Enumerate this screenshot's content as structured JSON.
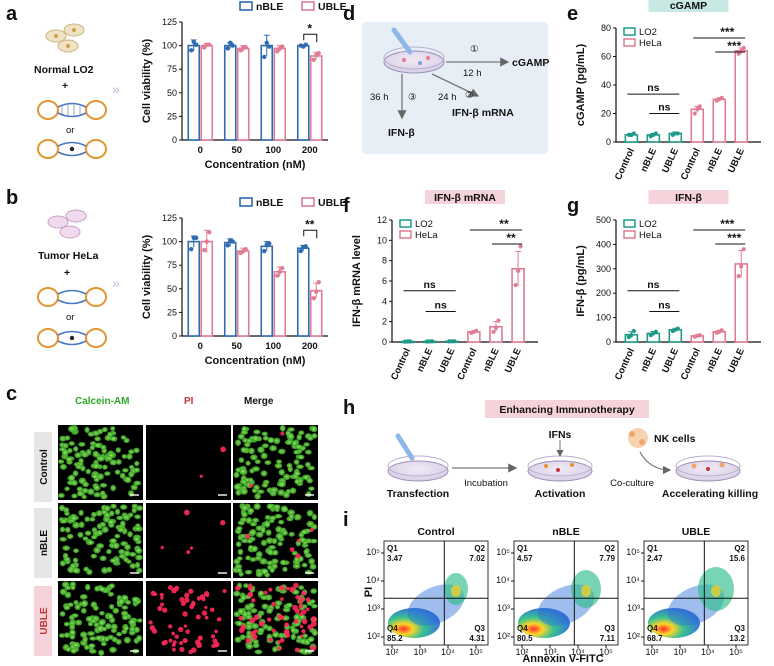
{
  "panels": {
    "a": {
      "label": "a",
      "cells_label": "Normal LO2",
      "plus": "+",
      "or": "or",
      "ylabel": "Cell viability (%)",
      "xlabel": "Concentration (nM)",
      "legend": [
        "nBLE",
        "UBLE"
      ],
      "significance": [
        {
          "text": "*"
        }
      ]
    },
    "b": {
      "label": "b",
      "cells_label": "Tumor HeLa",
      "plus": "+",
      "or": "or",
      "ylabel": "Cell viability (%)",
      "xlabel": "Concentration (nM)",
      "legend": [
        "nBLE",
        "UBLE"
      ],
      "significance": [
        {
          "text": "**"
        }
      ]
    },
    "c": {
      "label": "c",
      "columns": [
        "Calcein-AM",
        "PI",
        "Merge"
      ],
      "rows": [
        "Control",
        "nBLE",
        "UBLE"
      ]
    },
    "d": {
      "label": "d",
      "steps": [
        {
          "num": "①",
          "time": "12 h",
          "product": "cGAMP"
        },
        {
          "num": "②",
          "time": "24 h",
          "product": "IFN-β mRNA"
        },
        {
          "num": "③",
          "time": "36 h",
          "product": "IFN-β"
        }
      ]
    },
    "e": {
      "label": "e",
      "title": "cGAMP",
      "ylabel": "cGAMP (pg/mL)",
      "legend": [
        "LO2",
        "HeLa"
      ],
      "significance": [
        "ns",
        "ns",
        "***",
        "***"
      ]
    },
    "f": {
      "label": "f",
      "title": "IFN-β mRNA",
      "ylabel": "IFN-β mRNA level",
      "legend": [
        "LO2",
        "HeLa"
      ],
      "significance": [
        "ns",
        "ns",
        "**",
        "**"
      ]
    },
    "g": {
      "label": "g",
      "title": "IFN-β",
      "ylabel": "IFN-β (pg/mL)",
      "legend": [
        "LO2",
        "HeLa"
      ],
      "significance": [
        "ns",
        "ns",
        "***",
        "***"
      ]
    },
    "h": {
      "label": "h",
      "title": "Enhancing Immunotherapy",
      "steps": [
        "Transfection",
        "Incubation",
        "Activation",
        "Co-culture",
        "Accelerating killing"
      ],
      "ifns": "IFNs",
      "nk": "NK cells"
    },
    "i": {
      "label": "i",
      "xlabel": "Annexin V-FITC",
      "ylabel": "PI",
      "tick_labels": [
        "10²",
        "10³",
        "10⁴",
        "10⁵"
      ],
      "plots": [
        {
          "title": "Control",
          "q": [
            {
              "name": "Q1",
              "value": "3.47"
            },
            {
              "name": "Q2",
              "value": "7.02"
            },
            {
              "name": "Q4",
              "value": "85.2"
            },
            {
              "name": "Q3",
              "value": "4.31"
            }
          ]
        },
        {
          "title": "nBLE",
          "q": [
            {
              "name": "Q1",
              "value": "4.57"
            },
            {
              "name": "Q2",
              "value": "7.79"
            },
            {
              "name": "Q4",
              "value": "80.5"
            },
            {
              "name": "Q3",
              "value": "7.11"
            }
          ]
        },
        {
          "title": "UBLE",
          "q": [
            {
              "name": "Q1",
              "value": "2.47"
            },
            {
              "name": "Q2",
              "value": "15.6"
            },
            {
              "name": "Q4",
              "value": "68.7"
            },
            {
              "name": "Q3",
              "value": "13.2"
            }
          ]
        }
      ]
    }
  },
  "colors": {
    "nBLE": "#2e6bb0",
    "UBLE": "#e07d94",
    "LO2": "#1f9a88",
    "HeLa": "#e07d94",
    "dot": "#b83a3a",
    "title_bg": "#c8e8e4",
    "title_bg2": "#f6d3da"
  },
  "chart_data": [
    {
      "panel": "a",
      "type": "bar",
      "categories": [
        "0",
        "50",
        "100",
        "200"
      ],
      "series": [
        {
          "name": "nBLE",
          "values": [
            100,
            100,
            100,
            100
          ],
          "errors": [
            6,
            3,
            11,
            1
          ],
          "points": [
            [
              95,
              104,
              101
            ],
            [
              97,
              103,
              100
            ],
            [
              88,
              103,
              99
            ],
            [
              100,
              99,
              101
            ]
          ]
        },
        {
          "name": "UBLE",
          "values": [
            100,
            97,
            97,
            89
          ],
          "errors": [
            2,
            3,
            3,
            4
          ],
          "points": [
            [
              98,
              101,
              101
            ],
            [
              95,
              98,
              98
            ],
            [
              94,
              97,
              99
            ],
            [
              85,
              90,
              92
            ]
          ]
        }
      ],
      "xlabel": "Concentration (nM)",
      "ylabel": "Cell viability (%)",
      "ylim": [
        0,
        125
      ],
      "yticks": [
        0,
        25,
        50,
        75,
        100,
        125
      ]
    },
    {
      "panel": "b",
      "type": "bar",
      "categories": [
        "0",
        "50",
        "100",
        "200"
      ],
      "series": [
        {
          "name": "nBLE",
          "values": [
            100,
            99,
            95,
            93
          ],
          "errors": [
            6,
            4,
            5,
            3
          ],
          "points": [
            [
              92,
              104,
              104
            ],
            [
              96,
              101,
              100
            ],
            [
              90,
              97,
              98
            ],
            [
              90,
              94,
              95
            ]
          ]
        },
        {
          "name": "UBLE",
          "values": [
            100,
            90,
            68,
            48
          ],
          "errors": [
            12,
            3,
            5,
            8
          ],
          "points": [
            [
              91,
              100,
              110
            ],
            [
              88,
              90,
              92
            ],
            [
              64,
              68,
              72
            ],
            [
              40,
              47,
              57
            ]
          ]
        }
      ],
      "xlabel": "Concentration (nM)",
      "ylabel": "Cell viability (%)",
      "ylim": [
        0,
        125
      ],
      "yticks": [
        0,
        25,
        50,
        75,
        100,
        125
      ]
    },
    {
      "panel": "e",
      "type": "bar",
      "categories": [
        "Control",
        "nBLE",
        "UBLE",
        "Control",
        "nBLE",
        "UBLE"
      ],
      "groups": [
        "LO2",
        "LO2",
        "LO2",
        "HeLa",
        "HeLa",
        "HeLa"
      ],
      "values": [
        5,
        5,
        6,
        23,
        30,
        64
      ],
      "errors": [
        1,
        1,
        1,
        2,
        1,
        2
      ],
      "points": [
        [
          5,
          5,
          6
        ],
        [
          4,
          5,
          6
        ],
        [
          5,
          6,
          6
        ],
        [
          20,
          23,
          25
        ],
        [
          29,
          30,
          31
        ],
        [
          62,
          64,
          66
        ]
      ],
      "ylabel": "cGAMP (pg/mL)",
      "ylim": [
        0,
        80
      ],
      "yticks": [
        0,
        20,
        40,
        60,
        80
      ]
    },
    {
      "panel": "f",
      "type": "bar",
      "categories": [
        "Control",
        "nBLE",
        "UBLE",
        "Control",
        "nBLE",
        "UBLE"
      ],
      "groups": [
        "LO2",
        "LO2",
        "LO2",
        "HeLa",
        "HeLa",
        "HeLa"
      ],
      "values": [
        0.05,
        0.06,
        0.07,
        1.0,
        1.5,
        7.2
      ],
      "errors": [
        0.02,
        0.02,
        0.02,
        0.1,
        0.5,
        1.7
      ],
      "points": [
        [
          0.04,
          0.05,
          0.06
        ],
        [
          0.05,
          0.06,
          0.07
        ],
        [
          0.06,
          0.07,
          0.08
        ],
        [
          0.9,
          1.0,
          1.1
        ],
        [
          1.0,
          1.4,
          2.1
        ],
        [
          5.6,
          7.0,
          9.4
        ]
      ],
      "ylabel": "IFN-β mRNA level",
      "ylim": [
        0,
        12
      ],
      "yticks": [
        0,
        2,
        4,
        6,
        8,
        10,
        12
      ]
    },
    {
      "panel": "g",
      "type": "bar",
      "categories": [
        "Control",
        "nBLE",
        "UBLE",
        "Control",
        "nBLE",
        "UBLE"
      ],
      "groups": [
        "LO2",
        "LO2",
        "LO2",
        "HeLa",
        "HeLa",
        "HeLa"
      ],
      "values": [
        30,
        35,
        50,
        25,
        42,
        320
      ],
      "errors": [
        12,
        8,
        6,
        4,
        6,
        55
      ],
      "points": [
        [
          20,
          28,
          45
        ],
        [
          28,
          35,
          42
        ],
        [
          45,
          50,
          55
        ],
        [
          22,
          25,
          28
        ],
        [
          38,
          42,
          48
        ],
        [
          270,
          310,
          380
        ]
      ],
      "ylabel": "IFN-β (pg/mL)",
      "ylim": [
        0,
        500
      ],
      "yticks": [
        0,
        100,
        200,
        300,
        400,
        500
      ]
    }
  ]
}
